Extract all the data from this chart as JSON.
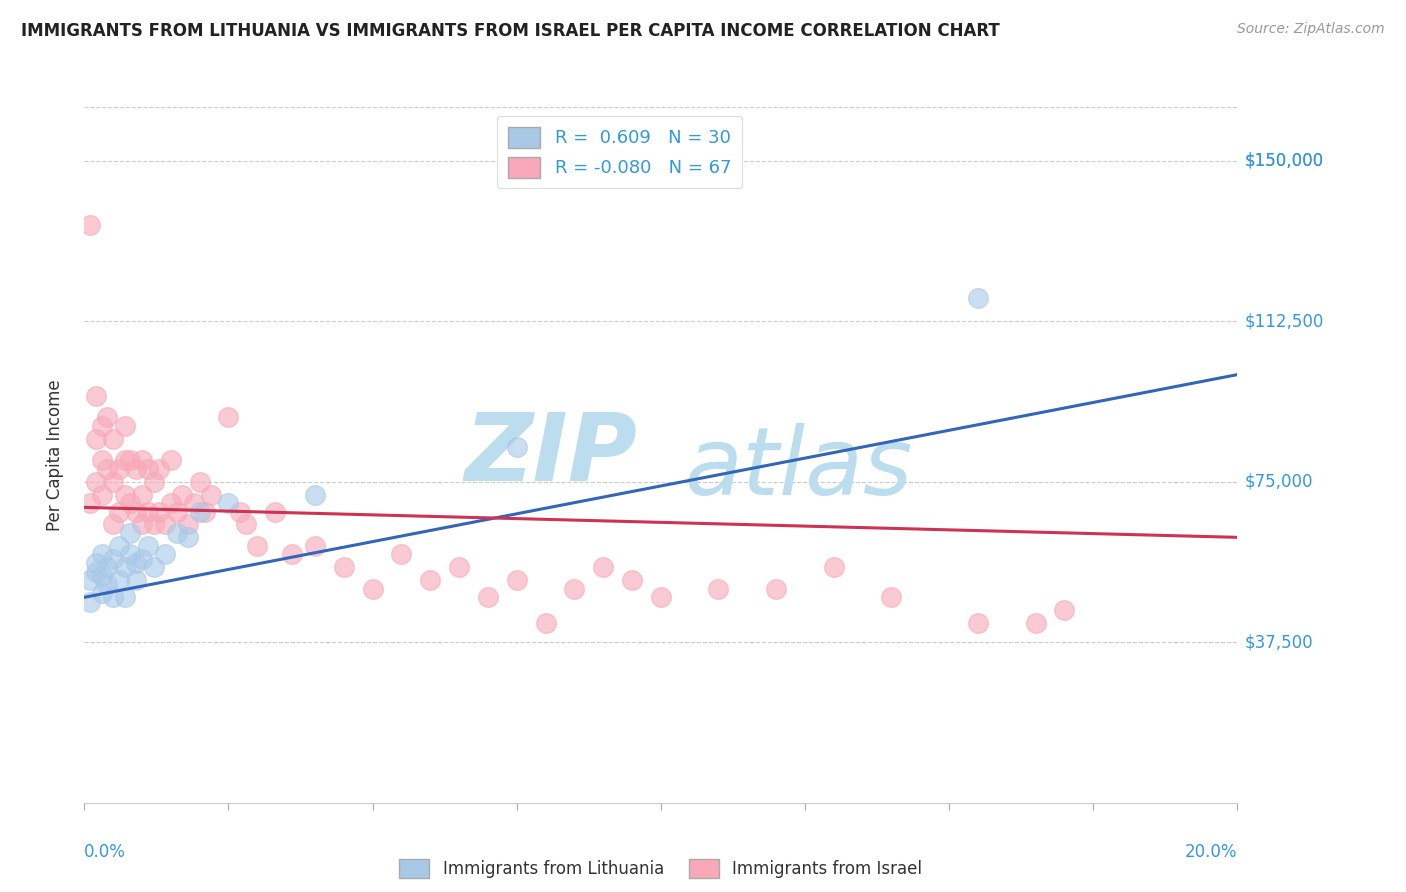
{
  "title": "IMMIGRANTS FROM LITHUANIA VS IMMIGRANTS FROM ISRAEL PER CAPITA INCOME CORRELATION CHART",
  "source": "Source: ZipAtlas.com",
  "ylabel": "Per Capita Income",
  "xlim": [
    0.0,
    0.2
  ],
  "ylim": [
    0,
    162500
  ],
  "yticks": [
    37500,
    75000,
    112500,
    150000
  ],
  "ytick_labels": [
    "$37,500",
    "$75,000",
    "$112,500",
    "$150,000"
  ],
  "xtick_labels_outer": [
    "0.0%",
    "20.0%"
  ],
  "blue_R": "0.609",
  "blue_N": 30,
  "pink_R": "-0.080",
  "pink_N": 67,
  "blue_color": "#A8C8E8",
  "pink_color": "#F8A8B8",
  "blue_line_color": "#3366BB",
  "pink_line_color": "#CC3355",
  "watermark_top": "ZIP",
  "watermark_bot": "atlas",
  "watermark_color": "#BBDDEE",
  "legend_label_blue": "Immigrants from Lithuania",
  "legend_label_pink": "Immigrants from Israel",
  "legend_box_blue": "#A8C8E8",
  "legend_box_pink": "#F8A8B8",
  "blue_scatter_x": [
    0.001,
    0.001,
    0.002,
    0.002,
    0.003,
    0.003,
    0.003,
    0.004,
    0.004,
    0.005,
    0.005,
    0.006,
    0.006,
    0.007,
    0.007,
    0.008,
    0.008,
    0.009,
    0.009,
    0.01,
    0.011,
    0.012,
    0.014,
    0.016,
    0.018,
    0.02,
    0.025,
    0.04,
    0.075,
    0.155
  ],
  "blue_scatter_y": [
    47000,
    52000,
    54000,
    56000,
    49000,
    53000,
    58000,
    51000,
    55000,
    48000,
    57000,
    52000,
    60000,
    55000,
    48000,
    58000,
    63000,
    52000,
    56000,
    57000,
    60000,
    55000,
    58000,
    63000,
    62000,
    68000,
    70000,
    72000,
    83000,
    118000
  ],
  "pink_scatter_x": [
    0.001,
    0.001,
    0.002,
    0.002,
    0.002,
    0.003,
    0.003,
    0.003,
    0.004,
    0.004,
    0.005,
    0.005,
    0.005,
    0.006,
    0.006,
    0.007,
    0.007,
    0.007,
    0.008,
    0.008,
    0.009,
    0.009,
    0.01,
    0.01,
    0.01,
    0.011,
    0.011,
    0.012,
    0.012,
    0.013,
    0.013,
    0.014,
    0.015,
    0.015,
    0.016,
    0.017,
    0.018,
    0.019,
    0.02,
    0.021,
    0.022,
    0.025,
    0.027,
    0.028,
    0.03,
    0.033,
    0.036,
    0.04,
    0.045,
    0.05,
    0.055,
    0.06,
    0.065,
    0.07,
    0.075,
    0.08,
    0.085,
    0.09,
    0.095,
    0.1,
    0.11,
    0.12,
    0.13,
    0.14,
    0.155,
    0.165,
    0.17
  ],
  "pink_scatter_y": [
    135000,
    70000,
    75000,
    85000,
    95000,
    72000,
    80000,
    88000,
    78000,
    90000,
    65000,
    75000,
    85000,
    68000,
    78000,
    72000,
    80000,
    88000,
    70000,
    80000,
    68000,
    78000,
    65000,
    72000,
    80000,
    68000,
    78000,
    65000,
    75000,
    68000,
    78000,
    65000,
    70000,
    80000,
    68000,
    72000,
    65000,
    70000,
    75000,
    68000,
    72000,
    90000,
    68000,
    65000,
    60000,
    68000,
    58000,
    60000,
    55000,
    50000,
    58000,
    52000,
    55000,
    48000,
    52000,
    42000,
    50000,
    55000,
    52000,
    48000,
    50000,
    50000,
    55000,
    48000,
    42000,
    42000,
    45000
  ],
  "blue_line_x": [
    0.0,
    0.2
  ],
  "blue_line_y": [
    48000,
    100000
  ],
  "pink_line_x": [
    0.0,
    0.2
  ],
  "pink_line_y": [
    69000,
    62000
  ]
}
